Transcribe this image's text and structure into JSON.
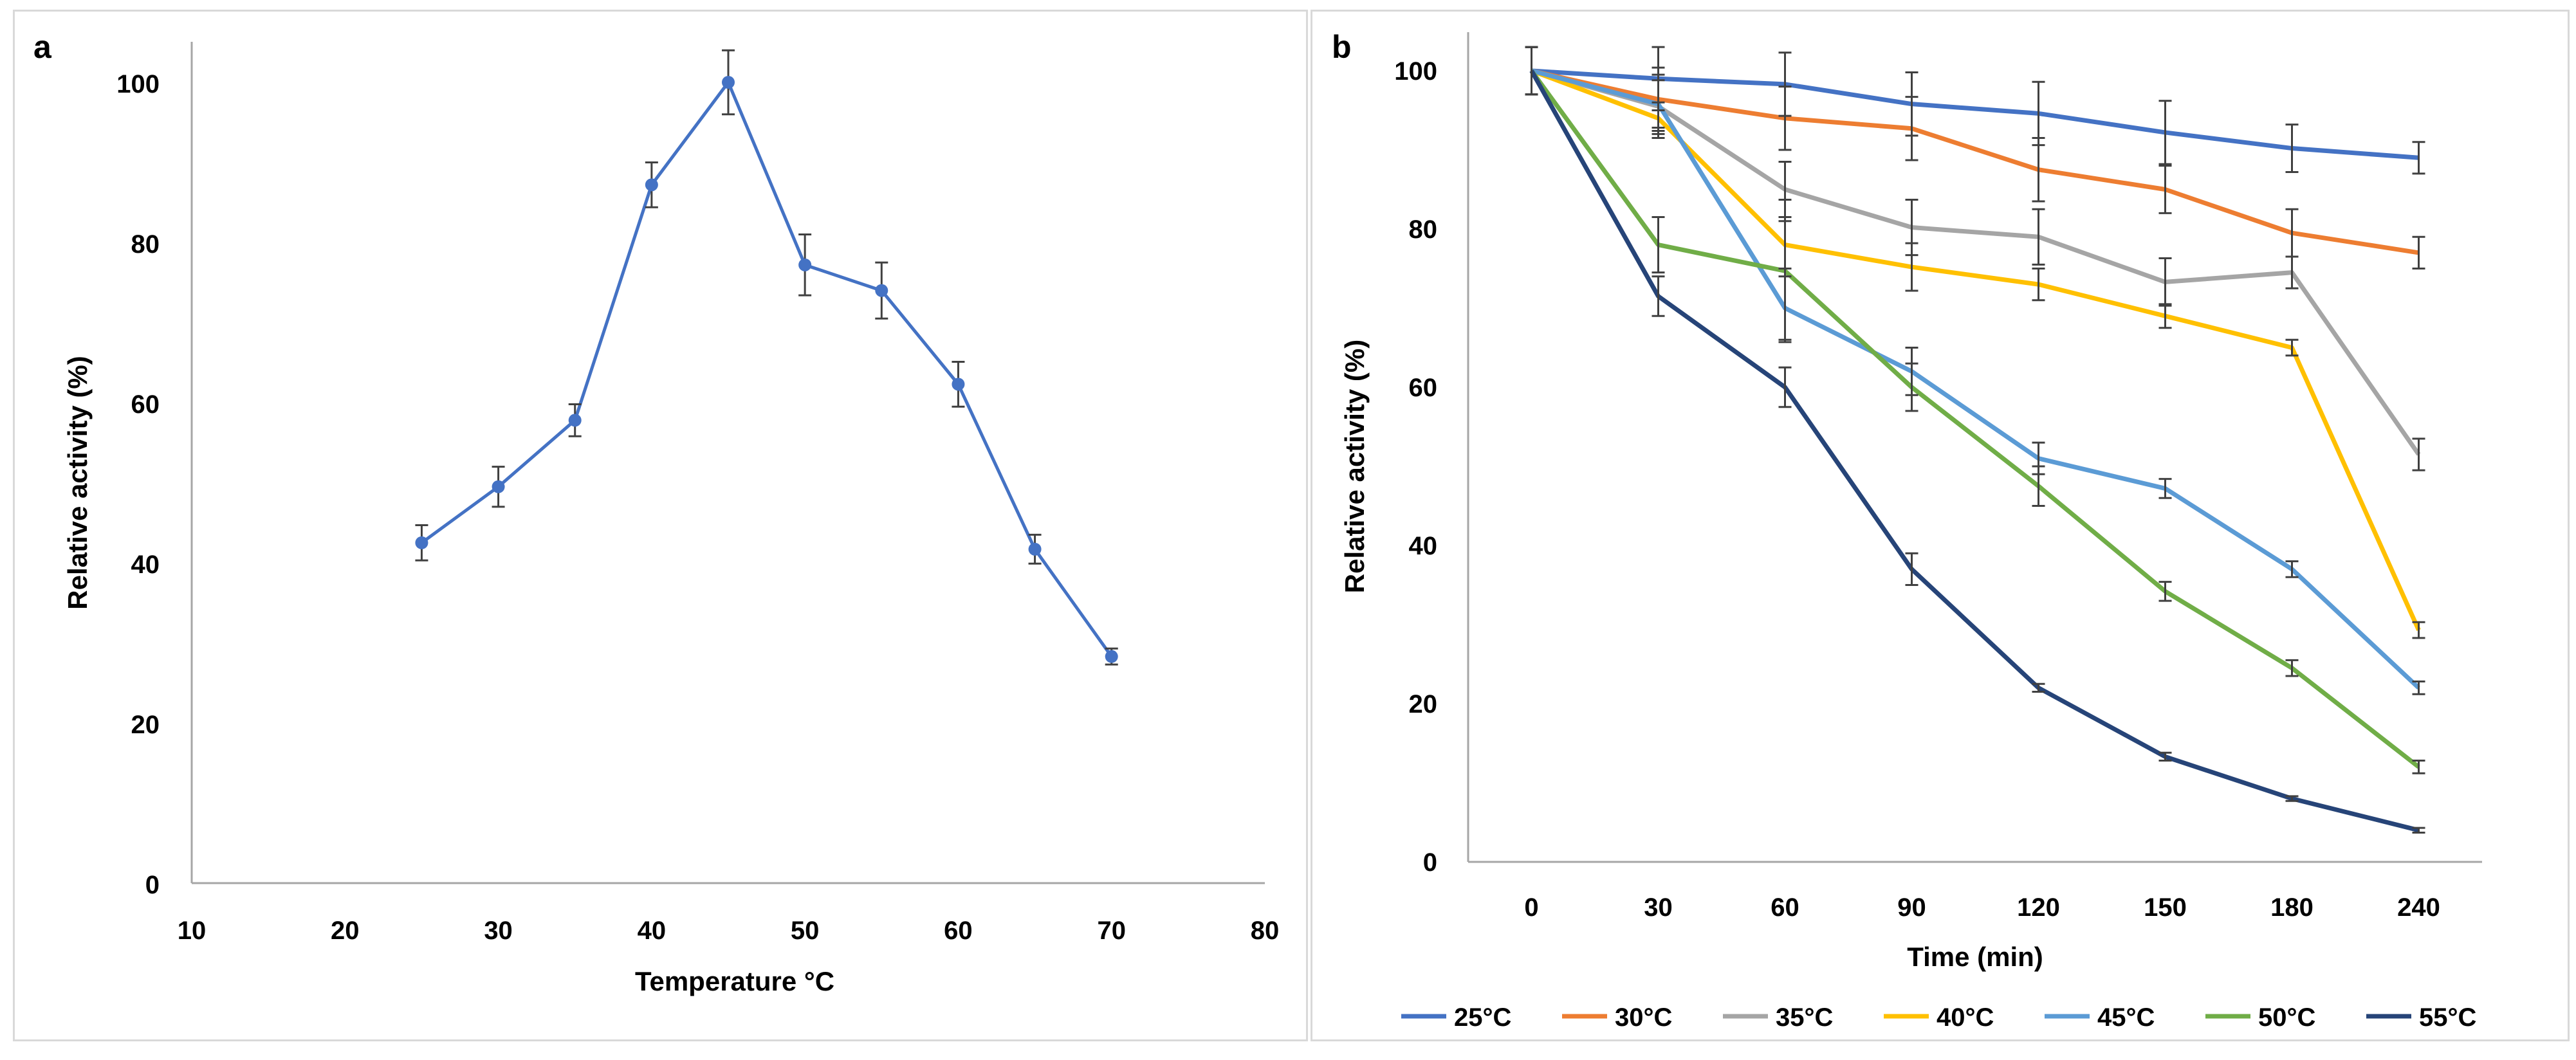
{
  "chart_data": [
    {
      "type": "line",
      "panel_label": "a",
      "xlabel": "Temperature °C",
      "ylabel": "Relative activity (%)",
      "xlim": [
        10,
        80
      ],
      "ylim": [
        0,
        100
      ],
      "x_ticks": [
        10,
        20,
        30,
        40,
        50,
        60,
        70,
        80
      ],
      "y_ticks": [
        0,
        20,
        40,
        60,
        80,
        100
      ],
      "series": [
        {
          "name": "Relative activity",
          "color": "#4472C4",
          "x": [
            25,
            30,
            35,
            40,
            45,
            50,
            55,
            60,
            65,
            70
          ],
          "values": [
            42.5,
            49.5,
            57.8,
            87.2,
            100,
            77.2,
            74,
            62.3,
            41.7,
            28.3
          ],
          "errors": [
            2.2,
            2.5,
            2.0,
            2.8,
            4.0,
            3.8,
            3.5,
            2.8,
            1.8,
            1.0
          ]
        }
      ]
    },
    {
      "type": "line",
      "panel_label": "b",
      "xlabel": "Time (min)",
      "ylabel": "Relative activity (%)",
      "categories": [
        "0",
        "30",
        "60",
        "90",
        "120",
        "150",
        "180",
        "240"
      ],
      "ylim": [
        0,
        100
      ],
      "y_ticks": [
        0,
        20,
        40,
        60,
        80,
        100
      ],
      "legend_position": "bottom",
      "series": [
        {
          "name": "25°C",
          "color": "#4472C4",
          "values": [
            100,
            99,
            98.3,
            95.8,
            94.6,
            92.2,
            90.2,
            89
          ],
          "errors": [
            3,
            4,
            4,
            4,
            4,
            4,
            3,
            2
          ]
        },
        {
          "name": "30°C",
          "color": "#ED7D31",
          "values": [
            100,
            96.4,
            94,
            92.7,
            87.5,
            85,
            79.5,
            77
          ],
          "errors": [
            3,
            4,
            4,
            4,
            4,
            3,
            3,
            2
          ]
        },
        {
          "name": "35°C",
          "color": "#A5A5A5",
          "values": [
            100,
            95.5,
            85,
            80.2,
            79,
            73.3,
            74.5,
            51.5
          ],
          "errors": [
            3,
            4,
            3.5,
            3.5,
            3.5,
            3,
            2,
            2
          ]
        },
        {
          "name": "40°C",
          "color": "#FFC000",
          "values": [
            100,
            94,
            78,
            75.2,
            73,
            69,
            65,
            29.3
          ],
          "errors": [
            3,
            2,
            3,
            3,
            2,
            1.5,
            1,
            1
          ]
        },
        {
          "name": "45°C",
          "color": "#5B9BD5",
          "values": [
            100,
            95.8,
            70,
            62,
            51,
            47.2,
            37,
            22
          ],
          "errors": [
            3,
            3,
            4,
            3,
            2,
            1.2,
            1,
            0.8
          ]
        },
        {
          "name": "50°C",
          "color": "#70AD47",
          "values": [
            100,
            78,
            74.7,
            60,
            47.5,
            34.2,
            24.5,
            12
          ],
          "errors": [
            3,
            3.5,
            9,
            3,
            2.5,
            1.2,
            1,
            0.8
          ]
        },
        {
          "name": "55°C",
          "color": "#264478",
          "values": [
            100,
            71.5,
            60,
            37,
            22,
            13.3,
            8,
            4
          ],
          "errors": [
            3,
            2.5,
            2.5,
            2,
            0.5,
            0.5,
            0.3,
            0.3
          ]
        }
      ]
    }
  ]
}
